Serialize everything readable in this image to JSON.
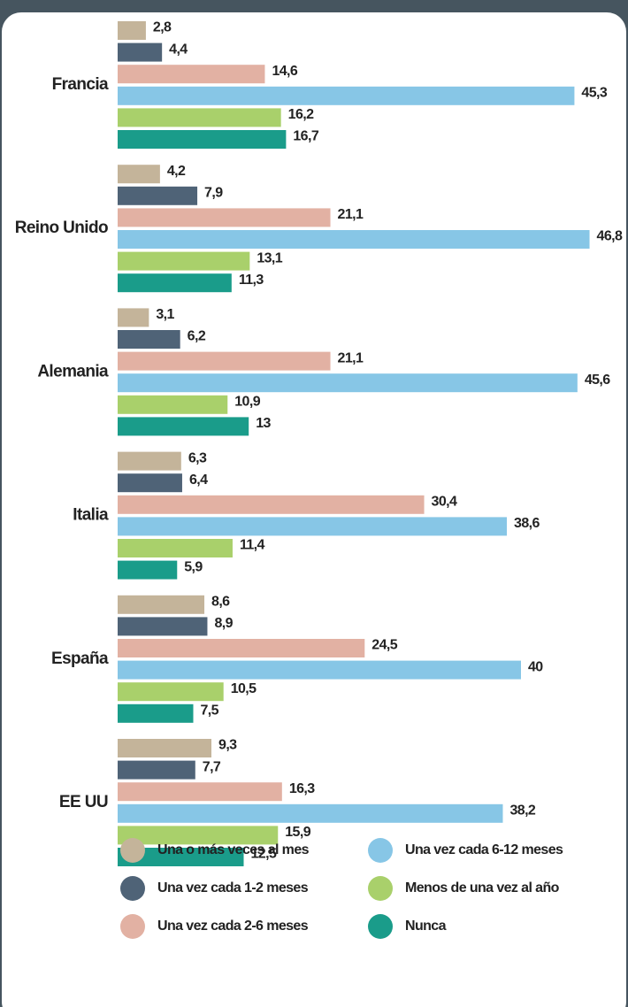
{
  "chart_data": {
    "type": "bar",
    "orientation": "horizontal",
    "categories": [
      "Francia",
      "Reino Unido",
      "Alemania",
      "Italia",
      "España",
      "EE UU"
    ],
    "series": [
      {
        "name": "Una o más veces al mes",
        "color": "#c4b49a",
        "values": [
          2.8,
          4.2,
          3.1,
          6.3,
          8.6,
          9.3
        ],
        "value_labels": [
          "2,8",
          "4,2",
          "3,1",
          "6,3",
          "8,6",
          "9,3"
        ]
      },
      {
        "name": "Una vez cada 1-2 meses",
        "color": "#4f6377",
        "values": [
          4.4,
          7.9,
          6.2,
          6.4,
          8.9,
          7.7
        ],
        "value_labels": [
          "4,4",
          "7,9",
          "6,2",
          "6,4",
          "8,9",
          "7,7"
        ]
      },
      {
        "name": "Una vez cada 2-6 meses",
        "color": "#e2b1a3",
        "values": [
          14.6,
          21.1,
          21.1,
          30.4,
          24.5,
          16.3
        ],
        "value_labels": [
          "14,6",
          "21,1",
          "21,1",
          "30,4",
          "24,5",
          "16,3"
        ]
      },
      {
        "name": "Una vez cada 6-12 meses",
        "color": "#87c6e6",
        "values": [
          45.3,
          46.8,
          45.6,
          38.6,
          40,
          38.2
        ],
        "value_labels": [
          "45,3",
          "46,8",
          "45,6",
          "38,6",
          "40",
          "38,2"
        ]
      },
      {
        "name": "Menos de una vez al año",
        "color": "#a9d06b",
        "values": [
          16.2,
          13.1,
          10.9,
          11.4,
          10.5,
          15.9
        ],
        "value_labels": [
          "16,2",
          "13,1",
          "10,9",
          "11,4",
          "10,5",
          "15,9"
        ]
      },
      {
        "name": "Nunca",
        "color": "#1a9c8a",
        "values": [
          16.7,
          11.3,
          13,
          5.9,
          7.5,
          12.5
        ],
        "value_labels": [
          "16,7",
          "11,3",
          "13",
          "5,9",
          "7,5",
          "12,5"
        ]
      }
    ],
    "xlim": [
      0,
      50
    ],
    "legend": "bottom"
  }
}
